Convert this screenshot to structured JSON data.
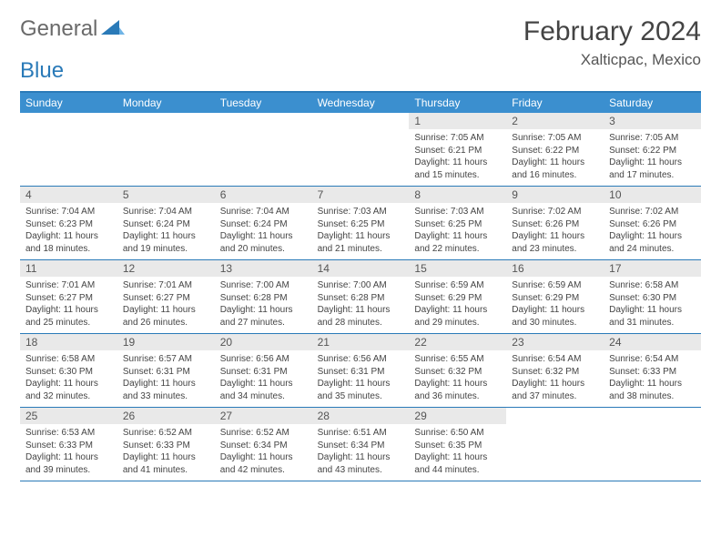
{
  "logo": {
    "general": "General",
    "blue": "Blue"
  },
  "title": "February 2024",
  "location": "Xalticpac, Mexico",
  "colors": {
    "header_bar": "#3b8fcf",
    "border": "#2a7ab8",
    "daynum_bg": "#e9e9e9",
    "text": "#444444",
    "logo_gray": "#6a6a6a",
    "logo_blue": "#2a7ab8",
    "background": "#ffffff"
  },
  "weekdays": [
    "Sunday",
    "Monday",
    "Tuesday",
    "Wednesday",
    "Thursday",
    "Friday",
    "Saturday"
  ],
  "weeks": [
    [
      null,
      null,
      null,
      null,
      {
        "num": "1",
        "sunrise": "Sunrise: 7:05 AM",
        "sunset": "Sunset: 6:21 PM",
        "daylight": "Daylight: 11 hours and 15 minutes."
      },
      {
        "num": "2",
        "sunrise": "Sunrise: 7:05 AM",
        "sunset": "Sunset: 6:22 PM",
        "daylight": "Daylight: 11 hours and 16 minutes."
      },
      {
        "num": "3",
        "sunrise": "Sunrise: 7:05 AM",
        "sunset": "Sunset: 6:22 PM",
        "daylight": "Daylight: 11 hours and 17 minutes."
      }
    ],
    [
      {
        "num": "4",
        "sunrise": "Sunrise: 7:04 AM",
        "sunset": "Sunset: 6:23 PM",
        "daylight": "Daylight: 11 hours and 18 minutes."
      },
      {
        "num": "5",
        "sunrise": "Sunrise: 7:04 AM",
        "sunset": "Sunset: 6:24 PM",
        "daylight": "Daylight: 11 hours and 19 minutes."
      },
      {
        "num": "6",
        "sunrise": "Sunrise: 7:04 AM",
        "sunset": "Sunset: 6:24 PM",
        "daylight": "Daylight: 11 hours and 20 minutes."
      },
      {
        "num": "7",
        "sunrise": "Sunrise: 7:03 AM",
        "sunset": "Sunset: 6:25 PM",
        "daylight": "Daylight: 11 hours and 21 minutes."
      },
      {
        "num": "8",
        "sunrise": "Sunrise: 7:03 AM",
        "sunset": "Sunset: 6:25 PM",
        "daylight": "Daylight: 11 hours and 22 minutes."
      },
      {
        "num": "9",
        "sunrise": "Sunrise: 7:02 AM",
        "sunset": "Sunset: 6:26 PM",
        "daylight": "Daylight: 11 hours and 23 minutes."
      },
      {
        "num": "10",
        "sunrise": "Sunrise: 7:02 AM",
        "sunset": "Sunset: 6:26 PM",
        "daylight": "Daylight: 11 hours and 24 minutes."
      }
    ],
    [
      {
        "num": "11",
        "sunrise": "Sunrise: 7:01 AM",
        "sunset": "Sunset: 6:27 PM",
        "daylight": "Daylight: 11 hours and 25 minutes."
      },
      {
        "num": "12",
        "sunrise": "Sunrise: 7:01 AM",
        "sunset": "Sunset: 6:27 PM",
        "daylight": "Daylight: 11 hours and 26 minutes."
      },
      {
        "num": "13",
        "sunrise": "Sunrise: 7:00 AM",
        "sunset": "Sunset: 6:28 PM",
        "daylight": "Daylight: 11 hours and 27 minutes."
      },
      {
        "num": "14",
        "sunrise": "Sunrise: 7:00 AM",
        "sunset": "Sunset: 6:28 PM",
        "daylight": "Daylight: 11 hours and 28 minutes."
      },
      {
        "num": "15",
        "sunrise": "Sunrise: 6:59 AM",
        "sunset": "Sunset: 6:29 PM",
        "daylight": "Daylight: 11 hours and 29 minutes."
      },
      {
        "num": "16",
        "sunrise": "Sunrise: 6:59 AM",
        "sunset": "Sunset: 6:29 PM",
        "daylight": "Daylight: 11 hours and 30 minutes."
      },
      {
        "num": "17",
        "sunrise": "Sunrise: 6:58 AM",
        "sunset": "Sunset: 6:30 PM",
        "daylight": "Daylight: 11 hours and 31 minutes."
      }
    ],
    [
      {
        "num": "18",
        "sunrise": "Sunrise: 6:58 AM",
        "sunset": "Sunset: 6:30 PM",
        "daylight": "Daylight: 11 hours and 32 minutes."
      },
      {
        "num": "19",
        "sunrise": "Sunrise: 6:57 AM",
        "sunset": "Sunset: 6:31 PM",
        "daylight": "Daylight: 11 hours and 33 minutes."
      },
      {
        "num": "20",
        "sunrise": "Sunrise: 6:56 AM",
        "sunset": "Sunset: 6:31 PM",
        "daylight": "Daylight: 11 hours and 34 minutes."
      },
      {
        "num": "21",
        "sunrise": "Sunrise: 6:56 AM",
        "sunset": "Sunset: 6:31 PM",
        "daylight": "Daylight: 11 hours and 35 minutes."
      },
      {
        "num": "22",
        "sunrise": "Sunrise: 6:55 AM",
        "sunset": "Sunset: 6:32 PM",
        "daylight": "Daylight: 11 hours and 36 minutes."
      },
      {
        "num": "23",
        "sunrise": "Sunrise: 6:54 AM",
        "sunset": "Sunset: 6:32 PM",
        "daylight": "Daylight: 11 hours and 37 minutes."
      },
      {
        "num": "24",
        "sunrise": "Sunrise: 6:54 AM",
        "sunset": "Sunset: 6:33 PM",
        "daylight": "Daylight: 11 hours and 38 minutes."
      }
    ],
    [
      {
        "num": "25",
        "sunrise": "Sunrise: 6:53 AM",
        "sunset": "Sunset: 6:33 PM",
        "daylight": "Daylight: 11 hours and 39 minutes."
      },
      {
        "num": "26",
        "sunrise": "Sunrise: 6:52 AM",
        "sunset": "Sunset: 6:33 PM",
        "daylight": "Daylight: 11 hours and 41 minutes."
      },
      {
        "num": "27",
        "sunrise": "Sunrise: 6:52 AM",
        "sunset": "Sunset: 6:34 PM",
        "daylight": "Daylight: 11 hours and 42 minutes."
      },
      {
        "num": "28",
        "sunrise": "Sunrise: 6:51 AM",
        "sunset": "Sunset: 6:34 PM",
        "daylight": "Daylight: 11 hours and 43 minutes."
      },
      {
        "num": "29",
        "sunrise": "Sunrise: 6:50 AM",
        "sunset": "Sunset: 6:35 PM",
        "daylight": "Daylight: 11 hours and 44 minutes."
      },
      null,
      null
    ]
  ]
}
